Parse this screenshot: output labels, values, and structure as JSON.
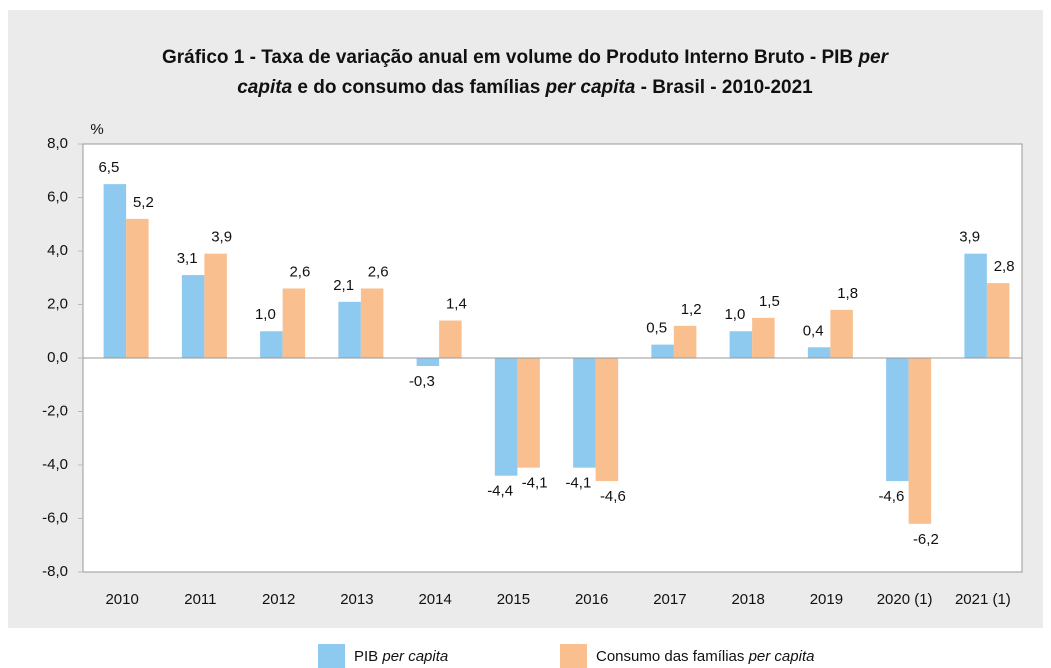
{
  "chart_data": {
    "type": "bar",
    "title": [
      [
        {
          "text": "Gráfico 1 - Taxa de variação anual em volume do Produto Interno Bruto - PIB "
        },
        {
          "text": "per",
          "italic": true
        }
      ],
      [
        {
          "text": "capita",
          "italic": true
        },
        {
          "text": " e do consumo das famílias "
        },
        {
          "text": "per capita",
          "italic": true
        },
        {
          "text": " - Brasil - 2010-2021"
        }
      ]
    ],
    "y_label": "%",
    "categories": [
      "2010",
      "2011",
      "2012",
      "2013",
      "2014",
      "2015",
      "2016",
      "2017",
      "2018",
      "2019",
      "2020 (1)",
      "2021 (1)"
    ],
    "series": [
      {
        "name": [
          {
            "text": "PIB "
          },
          {
            "text": "per capita",
            "italic": true
          }
        ],
        "color": "#8ec9ef",
        "values": [
          6.5,
          3.1,
          1.0,
          2.1,
          -0.3,
          -4.4,
          -4.1,
          0.5,
          1.0,
          0.4,
          -4.6,
          3.9
        ],
        "value_labels": [
          "6,5",
          "3,1",
          "1,0",
          "2,1",
          "-0,3",
          "-4,4",
          "-4,1",
          "0,5",
          "1,0",
          "0,4",
          "-4,6",
          "3,9"
        ]
      },
      {
        "name": [
          {
            "text": "Consumo das famílias "
          },
          {
            "text": "per capita",
            "italic": true
          }
        ],
        "color": "#f9bf8f",
        "values": [
          5.2,
          3.9,
          2.6,
          2.6,
          1.4,
          -4.1,
          -4.6,
          1.2,
          1.5,
          1.8,
          -6.2,
          2.8
        ],
        "value_labels": [
          "5,2",
          "3,9",
          "2,6",
          "2,6",
          "1,4",
          "-4,1",
          "-4,6",
          "1,2",
          "1,5",
          "1,8",
          "-6,2",
          "2,8"
        ]
      }
    ],
    "ylim": [
      -8,
      8
    ],
    "yticks": [
      {
        "value": -8,
        "label": "-8,0"
      },
      {
        "value": -6,
        "label": "-6,0"
      },
      {
        "value": -4,
        "label": "-4,0"
      },
      {
        "value": -2,
        "label": "-2,0"
      },
      {
        "value": 0,
        "label": "0,0"
      },
      {
        "value": 2,
        "label": "2,0"
      },
      {
        "value": 4,
        "label": "4,0"
      },
      {
        "value": 6,
        "label": "6,0"
      },
      {
        "value": 8,
        "label": "8,0"
      }
    ]
  }
}
